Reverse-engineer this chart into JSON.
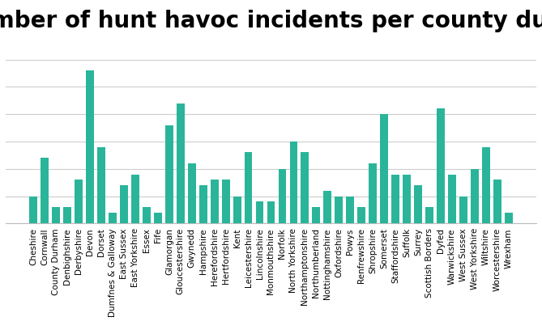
{
  "title": "Number of hunt havoc incidents per county during Relevant Po",
  "bar_color": "#2ab59a",
  "background_color": "#ffffff",
  "plot_bg_color": "#ffffff",
  "categories": [
    "Cheshire",
    "Cornwall",
    "County Durham",
    "Denbighshire",
    "Derbyshire",
    "Devon",
    "Dorset",
    "Dumfnes & Galloway",
    "East Sussex",
    "East Yorkshire",
    "Essex",
    "Fife",
    "Glamorgan",
    "Gloucestershire",
    "Gwynedd",
    "Hampshire",
    "Herefordshire",
    "Hertfordshire",
    "Kent",
    "Leicestershire",
    "Lincolnshire",
    "Monmouthshire",
    "Norfolk",
    "North Yorkshire",
    "Northamptonshire",
    "Northumberland",
    "Nottinghamshire",
    "Oxfordshire",
    "Powys",
    "Renfrewshire",
    "Shropshire",
    "Somerset",
    "Staffordshire",
    "Suffolk",
    "Surrey",
    "Scottish Borders",
    "Dyfed",
    "Warwickshire",
    "West Sussex",
    "West Yorkshire",
    "Wiltshire",
    "Worcestershire",
    "Wrexham"
  ],
  "values": [
    5,
    12,
    3,
    3,
    8,
    28,
    14,
    2,
    7,
    9,
    3,
    2,
    18,
    22,
    11,
    7,
    8,
    8,
    5,
    13,
    4,
    4,
    10,
    15,
    13,
    3,
    6,
    5,
    5,
    3,
    11,
    20,
    9,
    9,
    7,
    3,
    21,
    9,
    5,
    10,
    14,
    8,
    2
  ],
  "ylim": [
    0,
    30
  ],
  "grid_color": "#cccccc",
  "title_fontsize": 20,
  "tick_fontsize": 7.5
}
